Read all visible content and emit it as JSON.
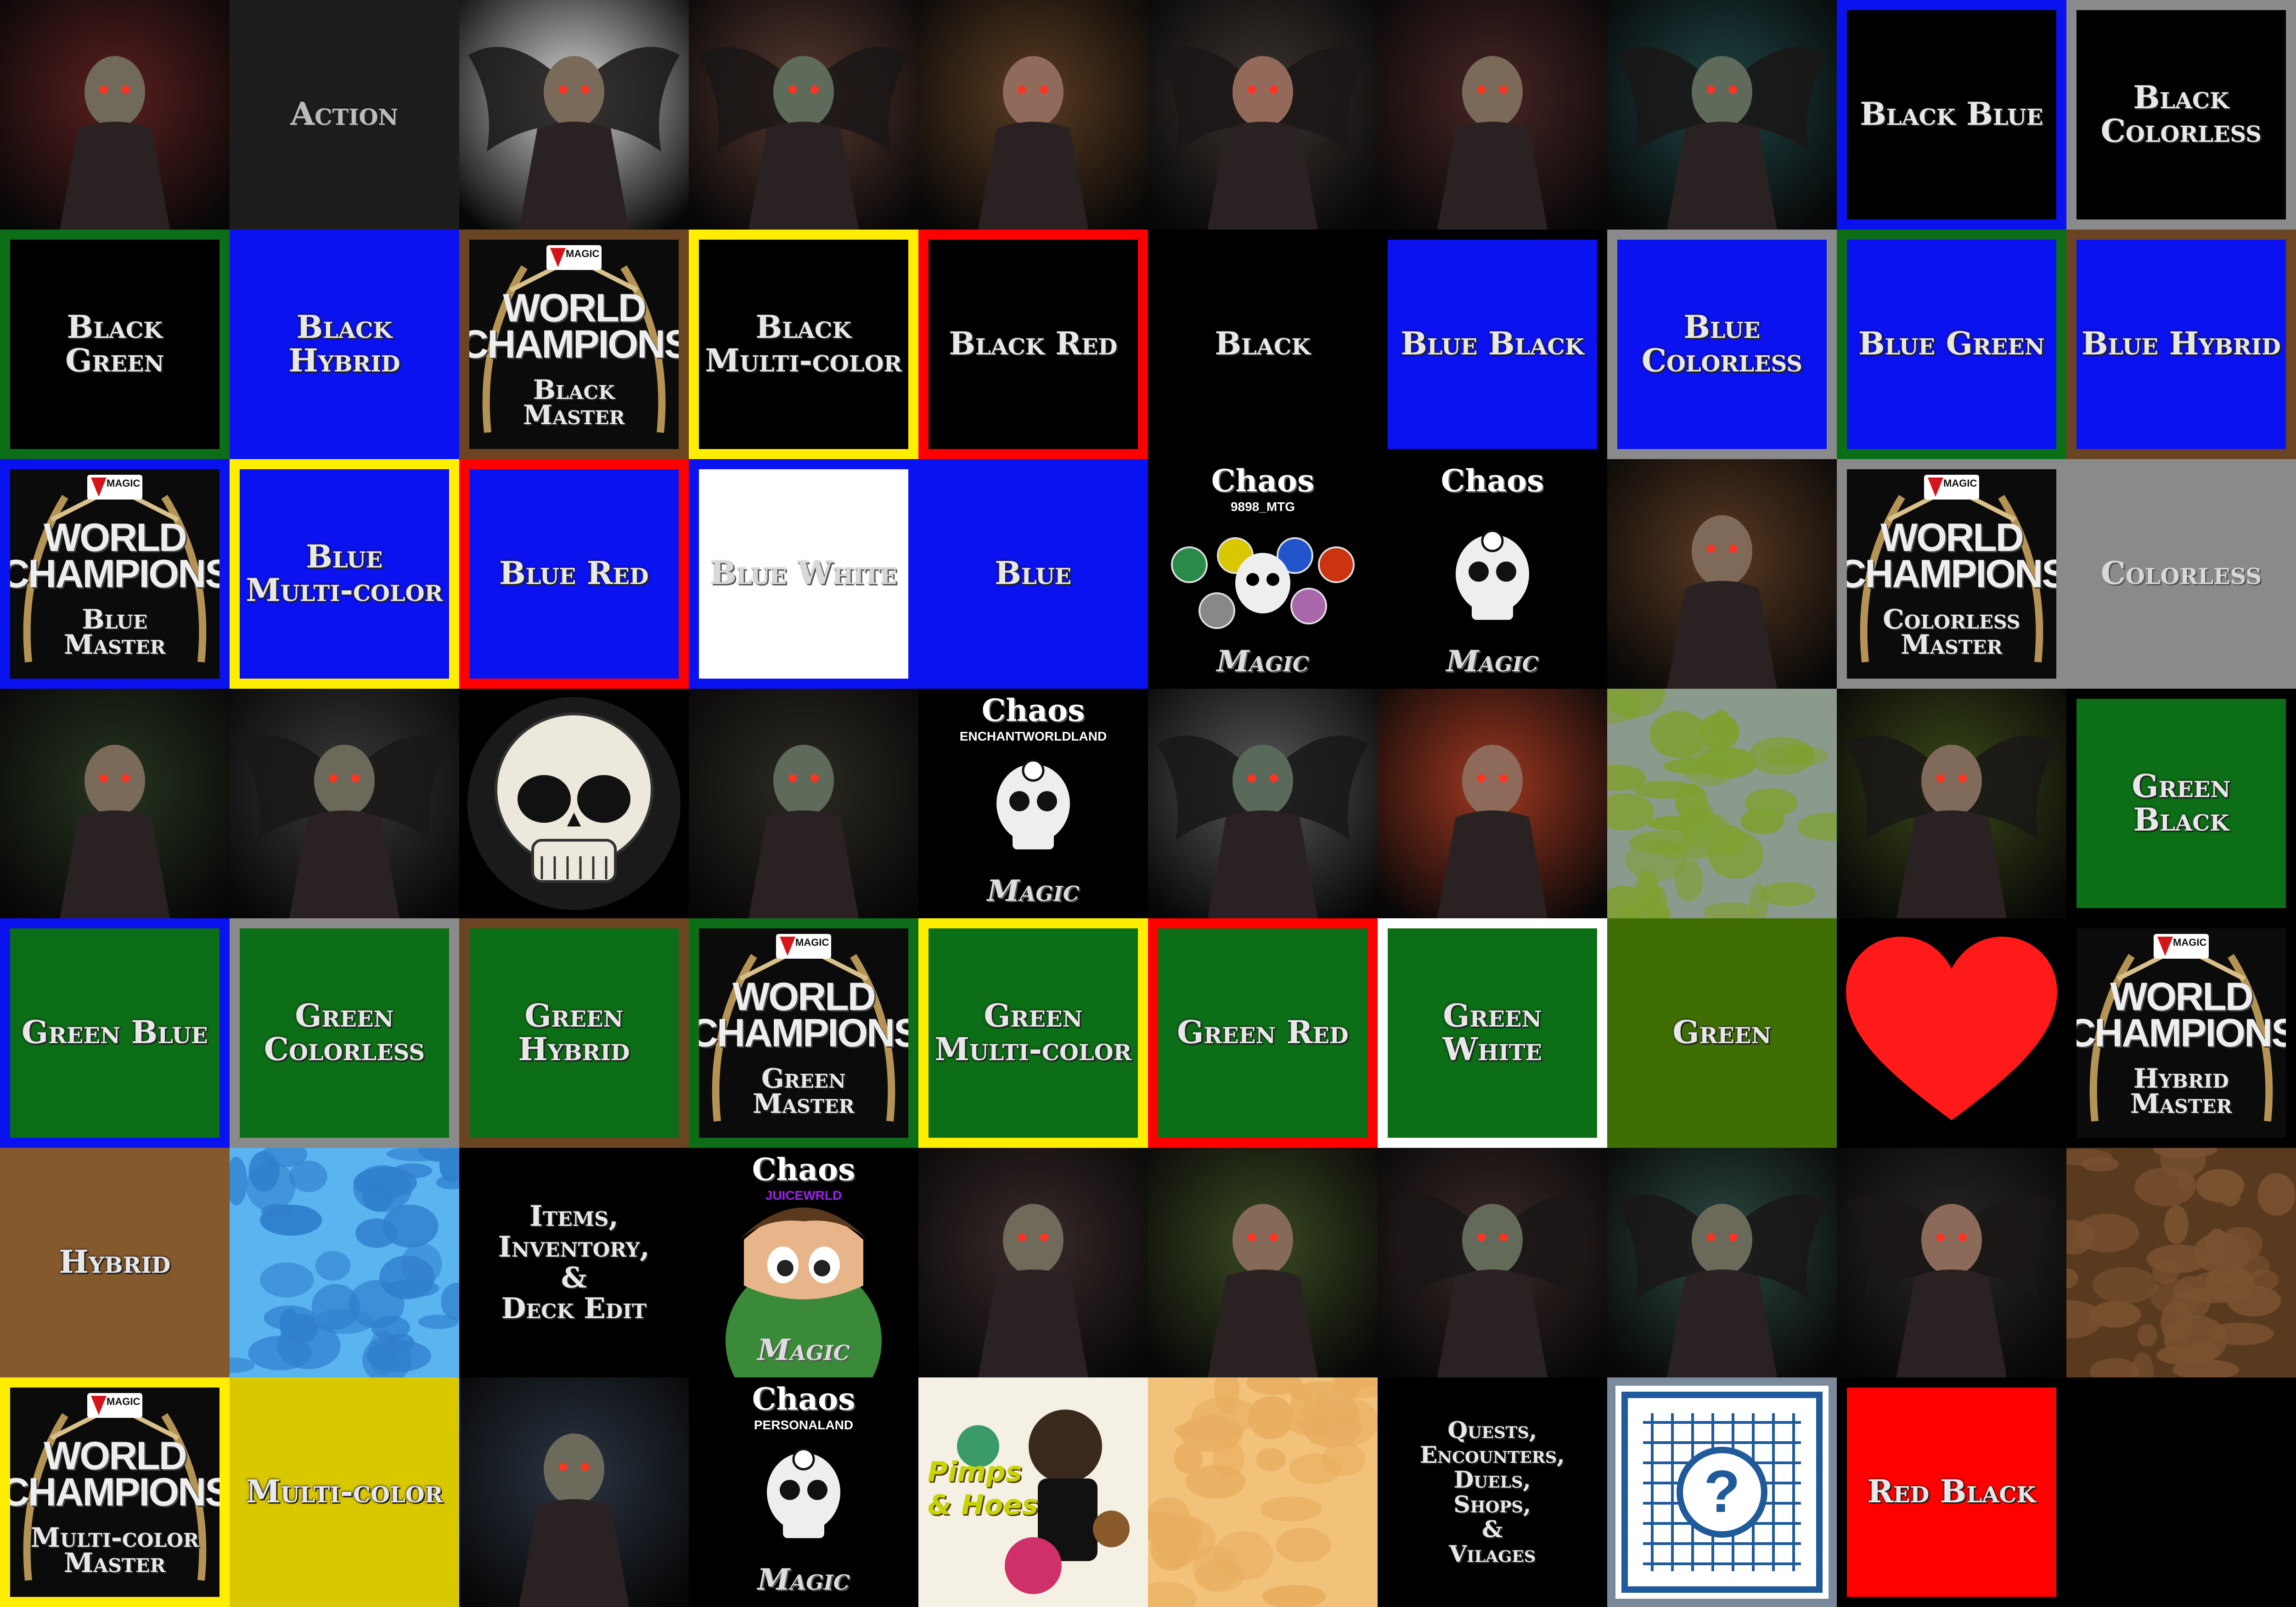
{
  "colors": {
    "black": "#000000",
    "blue": "#0b12f0",
    "green": "#0c6e16",
    "red": "#ff0000",
    "yellow": "#ffee00",
    "white": "#ffffff",
    "gray": "#8a8a8a",
    "brown": "#6b4522",
    "olive": "#3f6f04",
    "hybridBrown": "#84592c",
    "multiYellow": "#d9c800"
  },
  "tiles": [
    {
      "kind": "art",
      "icon": "bloody-woman-portrait-icon",
      "theme": "#5a1f1f"
    },
    {
      "kind": "label",
      "text": "Action",
      "bg": "#1d1d1d",
      "fg": "#bbbbbb"
    },
    {
      "kind": "art",
      "icon": "winged-knight-icon",
      "theme": "#d8d8d8"
    },
    {
      "kind": "art",
      "icon": "winged-demon-icon",
      "theme": "#5a3a30"
    },
    {
      "kind": "art",
      "icon": "ornate-mask-portrait-icon",
      "theme": "#5b3c22"
    },
    {
      "kind": "art",
      "icon": "horned-demon-icon",
      "theme": "#3c3530"
    },
    {
      "kind": "art",
      "icon": "vampire-woman-portrait-icon",
      "theme": "#472524"
    },
    {
      "kind": "art",
      "icon": "teal-demon-icon",
      "theme": "#1f4546"
    },
    {
      "kind": "label",
      "text": "Black Blue",
      "bg": "#000000",
      "border": "#0b12f0"
    },
    {
      "kind": "label",
      "text": "Black\nColorless",
      "bg": "#000000",
      "border": "#8a8a8a"
    },
    {
      "kind": "label",
      "text": "Black Green",
      "bg": "#000000",
      "border": "#0c6e16"
    },
    {
      "kind": "label",
      "text": "Black Hybrid",
      "bg": "#0b12f0",
      "border": "#0b12f0"
    },
    {
      "kind": "badge",
      "title": "WORLD\nCHAMPIONSHIP",
      "sub": "Black\nMaster",
      "brand": "MAGIC",
      "border": "#6b4522"
    },
    {
      "kind": "label",
      "text": "Black\nMulti-color",
      "bg": "#000000",
      "border": "#ffee00"
    },
    {
      "kind": "label",
      "text": "Black Red",
      "bg": "#000000",
      "border": "#ff0000"
    },
    {
      "kind": "label",
      "text": "Black",
      "bg": "#000000"
    },
    {
      "kind": "label",
      "text": "Blue Black",
      "bg": "#0b12f0",
      "border": "#000000"
    },
    {
      "kind": "label",
      "text": "Blue\nColorless",
      "bg": "#0b12f0",
      "border": "#8a8a8a"
    },
    {
      "kind": "label",
      "text": "Blue Green",
      "bg": "#0b12f0",
      "border": "#0c6e16"
    },
    {
      "kind": "label",
      "text": "Blue Hybrid",
      "bg": "#0b12f0",
      "border": "#6b4522"
    },
    {
      "kind": "badge",
      "title": "WORLD\nCHAMPIONSHIP",
      "sub": "Blue\nMaster",
      "brand": "MAGIC",
      "border": "#0b12f0"
    },
    {
      "kind": "label",
      "text": "Blue\nMulti-color",
      "bg": "#0b12f0",
      "border": "#ffee00"
    },
    {
      "kind": "label",
      "text": "Blue Red",
      "bg": "#0b12f0",
      "border": "#ff0000"
    },
    {
      "kind": "label",
      "text": "Blue White",
      "bg": "#ffffff",
      "border": "#0b12f0",
      "dark": true
    },
    {
      "kind": "label",
      "text": "Blue",
      "bg": "#0b12f0"
    },
    {
      "kind": "chaos",
      "head": "Chaos",
      "sub": "9898_MTG",
      "foot": "Magic",
      "mana": true
    },
    {
      "kind": "chaos",
      "head": "Chaos",
      "sub": "",
      "foot": "Magic"
    },
    {
      "kind": "art",
      "icon": "bust-statue-portrait-icon",
      "theme": "#5a3a22"
    },
    {
      "kind": "badge",
      "title": "WORLD\nCHAMPIONSHIP",
      "sub": "Colorless\nMaster",
      "brand": "MAGIC",
      "border": "#8a8a8a"
    },
    {
      "kind": "label",
      "text": "Colorless",
      "bg": "#8a8a8a",
      "dark": true
    },
    {
      "kind": "art",
      "icon": "hooded-skeleton-lantern-icon",
      "theme": "#26341f"
    },
    {
      "kind": "art",
      "icon": "winged-reaper-knight-icon",
      "theme": "#3a3a3a"
    },
    {
      "kind": "skull",
      "icon": "skull-icon"
    },
    {
      "kind": "art",
      "icon": "skeleton-reading-icon",
      "theme": "#2d2a22"
    },
    {
      "kind": "chaos",
      "head": "Chaos",
      "sub": "ENCHANTWORLDLAND",
      "foot": "Magic"
    },
    {
      "kind": "art",
      "icon": "winged-angel-statue-icon",
      "theme": "#5a5a5a"
    },
    {
      "kind": "art",
      "icon": "screaming-woman-icon",
      "theme": "#a03820"
    },
    {
      "kind": "camo",
      "icon": "camo-green-gray-texture-icon",
      "base": "#8c9a8e",
      "spot": "#7fa030"
    },
    {
      "kind": "art",
      "icon": "hooded-green-reaper-icon",
      "theme": "#3c4a18"
    },
    {
      "kind": "label",
      "text": "Green Black",
      "bg": "#0c6e16",
      "border": "#000000"
    },
    {
      "kind": "label",
      "text": "Green Blue",
      "bg": "#0c6e16",
      "border": "#0b12f0"
    },
    {
      "kind": "label",
      "text": "Green\nColorless",
      "bg": "#0c6e16",
      "border": "#8a8a8a"
    },
    {
      "kind": "label",
      "text": "Green Hybrid",
      "bg": "#0c6e16",
      "border": "#6b4522"
    },
    {
      "kind": "badge",
      "title": "WORLD\nCHAMPIONSHIP",
      "sub": "Green\nMaster",
      "brand": "MAGIC",
      "border": "#0c6e16"
    },
    {
      "kind": "label",
      "text": "Green\nMulti-color",
      "bg": "#0c6e16",
      "border": "#ffee00"
    },
    {
      "kind": "label",
      "text": "Green Red",
      "bg": "#0c6e16",
      "border": "#ff0000"
    },
    {
      "kind": "label",
      "text": "Green White",
      "bg": "#0c6e16",
      "border": "#ffffff"
    },
    {
      "kind": "label",
      "text": "Green",
      "bg": "#3f6f04"
    },
    {
      "kind": "heart",
      "icon": "heart-icon"
    },
    {
      "kind": "badge",
      "title": "WORLD\nCHAMPIONSHIP",
      "sub": "Hybrid\nMaster",
      "brand": "MAGIC",
      "border": "#000000"
    },
    {
      "kind": "label",
      "text": "Hybrid",
      "bg": "#84592c"
    },
    {
      "kind": "camo",
      "icon": "camo-blue-water-texture-icon",
      "base": "#5ab4f0",
      "spot": "#2f7fcc"
    },
    {
      "kind": "label",
      "text": "Items,\nInventory,\n&\nDeck Edit",
      "bg": "#000000",
      "small": true
    },
    {
      "kind": "chaos",
      "head": "Chaos",
      "sub": "JUICEWRLD",
      "foot": "Magic",
      "cartoon": true
    },
    {
      "kind": "art",
      "icon": "grinning-ghoul-icon",
      "theme": "#3a2a2a"
    },
    {
      "kind": "art",
      "icon": "green-zombie-icon",
      "theme": "#3a4a22"
    },
    {
      "kind": "art",
      "icon": "red-eyed-demon-icon",
      "theme": "#3a2a28"
    },
    {
      "kind": "art",
      "icon": "teal-winged-demon-icon",
      "theme": "#2d4a44"
    },
    {
      "kind": "art",
      "icon": "dark-winged-swordsman-icon",
      "theme": "#2a2626"
    },
    {
      "kind": "camo",
      "icon": "camo-brown-texture-icon",
      "base": "#5a3a1e",
      "spot": "#7a5230"
    },
    {
      "kind": "badge",
      "title": "WORLD\nCHAMPIONSHIP",
      "sub": "Multi-color\nMaster",
      "brand": "MAGIC",
      "border": "#ffee00"
    },
    {
      "kind": "label",
      "text": "Multi-color",
      "bg": "#d9c800"
    },
    {
      "kind": "art",
      "icon": "zombie-vampire-portrait-icon",
      "theme": "#2a3442"
    },
    {
      "kind": "chaos",
      "head": "Chaos",
      "sub": "PERSONALAND",
      "foot": "Magic"
    },
    {
      "kind": "comic",
      "text": "Pimps\n& Hoes",
      "icon": "comic-characters-icon"
    },
    {
      "kind": "camo",
      "icon": "camo-sand-texture-icon",
      "base": "#f2c27a",
      "spot": "#e8ae60"
    },
    {
      "kind": "label",
      "text": "Quests,\nEncounters,\nDuels,\nShops,\n&\nVilages",
      "bg": "#000000",
      "smaller": true
    },
    {
      "kind": "card",
      "icon": "card-back-question-icon"
    },
    {
      "kind": "label",
      "text": "Red Black",
      "bg": "#ff0000",
      "border": "#000000"
    },
    {
      "kind": "empty",
      "bg": "#000000"
    }
  ]
}
